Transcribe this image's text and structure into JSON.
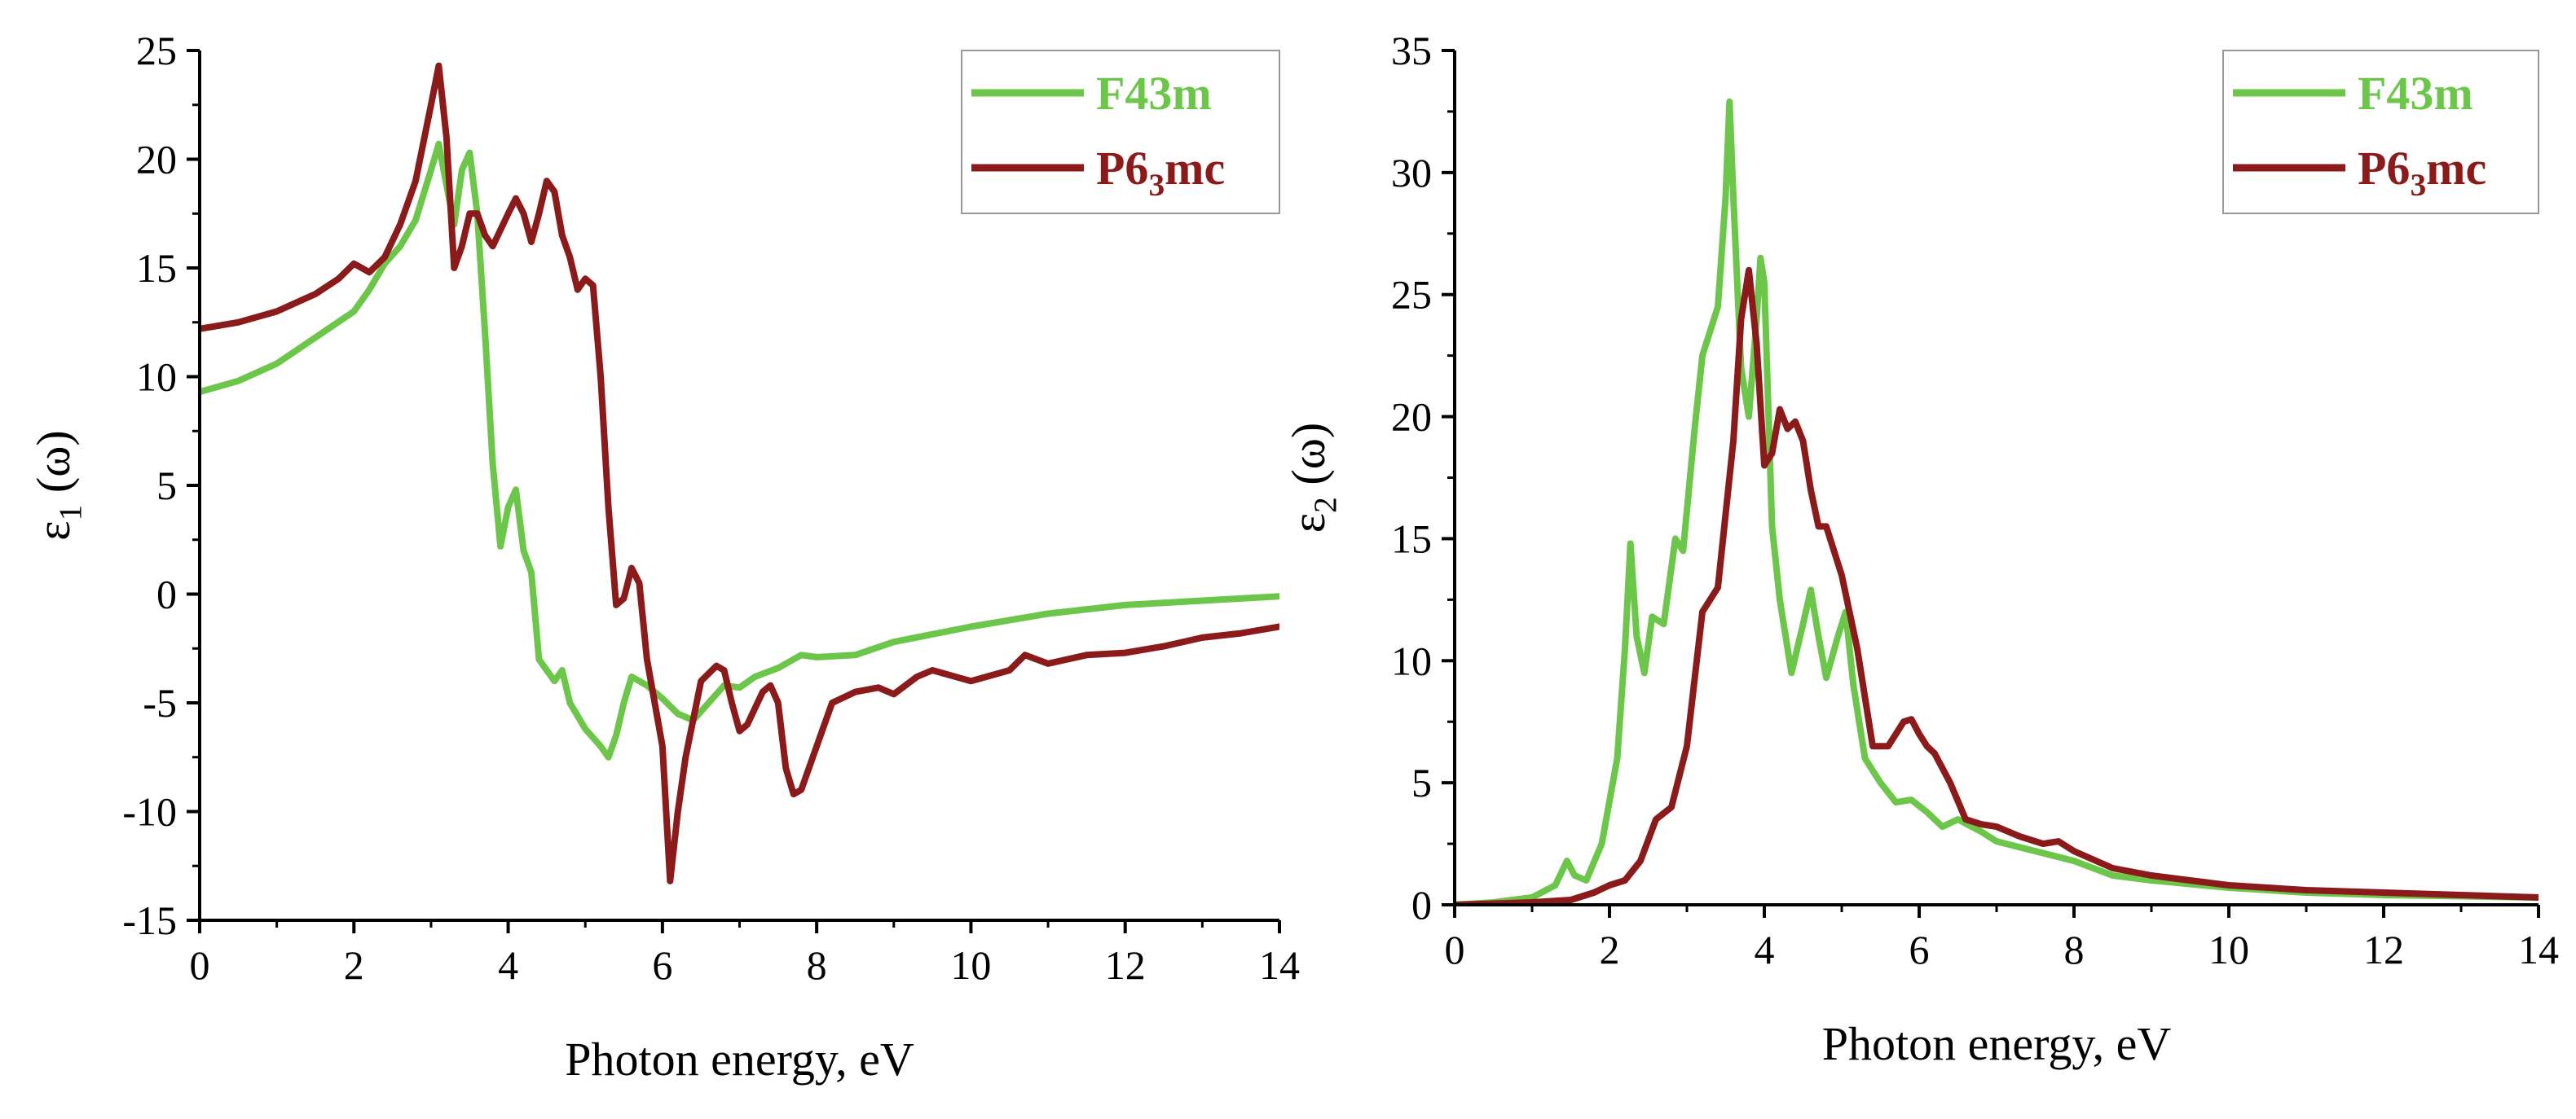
{
  "chart_data": [
    {
      "type": "line",
      "id": "eps1",
      "ylabel": "ε1 (ω)",
      "ylabel_main": "ε",
      "ylabel_sub": "1",
      "ylabel_rest": " (ω)",
      "xlabel": "Photon energy, eV",
      "xlim": [
        0,
        14
      ],
      "ylim": [
        -15,
        25
      ],
      "xticks": [
        0,
        2,
        4,
        6,
        8,
        10,
        12,
        14
      ],
      "yticks": [
        -15,
        -10,
        -5,
        0,
        5,
        10,
        15,
        20,
        25
      ],
      "xtick_labels": [
        "0",
        "2",
        "4",
        "6",
        "8",
        "10",
        "12",
        "14"
      ],
      "ytick_labels": [
        "-15",
        "-10",
        "-5",
        "0",
        "5",
        "10",
        "15",
        "20",
        "25"
      ],
      "legend": "top-right",
      "series": [
        {
          "name": "F43m",
          "label_main": "F43m",
          "label_sub": "",
          "label_rest": "",
          "color": "#6cc64a",
          "x": [
            0,
            0.5,
            1.0,
            1.5,
            2.0,
            2.2,
            2.4,
            2.6,
            2.8,
            3.0,
            3.1,
            3.2,
            3.3,
            3.4,
            3.5,
            3.6,
            3.7,
            3.8,
            3.9,
            4.0,
            4.1,
            4.2,
            4.3,
            4.4,
            4.5,
            4.6,
            4.7,
            4.8,
            5.0,
            5.2,
            5.3,
            5.4,
            5.5,
            5.6,
            5.8,
            6.0,
            6.2,
            6.4,
            6.6,
            6.8,
            7.0,
            7.2,
            7.5,
            7.8,
            8.0,
            8.5,
            9.0,
            10.0,
            11.0,
            12.0,
            13.0,
            14.0
          ],
          "values": [
            9.3,
            9.8,
            10.6,
            11.8,
            13.0,
            14.0,
            15.2,
            16.0,
            17.2,
            19.5,
            20.7,
            18.8,
            17.0,
            19.5,
            20.3,
            17.5,
            12.0,
            6.0,
            2.2,
            4.0,
            4.8,
            2.0,
            1.0,
            -3.0,
            -3.5,
            -4.0,
            -3.5,
            -5.0,
            -6.2,
            -7.0,
            -7.5,
            -6.5,
            -5.0,
            -3.8,
            -4.2,
            -4.8,
            -5.5,
            -5.8,
            -5.0,
            -4.2,
            -4.3,
            -3.8,
            -3.4,
            -2.8,
            -2.9,
            -2.8,
            -2.2,
            -1.5,
            -0.9,
            -0.5,
            -0.3,
            -0.1
          ]
        },
        {
          "name": "P63mc",
          "label_main": "P6",
          "label_sub": "3",
          "label_rest": "mc",
          "color": "#8b1a1a",
          "x": [
            0,
            0.5,
            1.0,
            1.5,
            1.8,
            2.0,
            2.1,
            2.2,
            2.4,
            2.6,
            2.8,
            3.0,
            3.1,
            3.2,
            3.3,
            3.4,
            3.5,
            3.6,
            3.7,
            3.8,
            4.0,
            4.1,
            4.2,
            4.3,
            4.4,
            4.5,
            4.6,
            4.7,
            4.8,
            4.9,
            5.0,
            5.1,
            5.2,
            5.3,
            5.4,
            5.5,
            5.6,
            5.7,
            5.8,
            5.9,
            6.0,
            6.1,
            6.2,
            6.3,
            6.5,
            6.7,
            6.8,
            6.9,
            7.0,
            7.1,
            7.3,
            7.4,
            7.5,
            7.6,
            7.7,
            7.8,
            8.0,
            8.2,
            8.5,
            8.8,
            9.0,
            9.3,
            9.5,
            10.0,
            10.5,
            10.7,
            11.0,
            11.5,
            12.0,
            12.5,
            13.0,
            13.5,
            14.0
          ],
          "values": [
            12.2,
            12.5,
            13.0,
            13.8,
            14.5,
            15.2,
            15.0,
            14.8,
            15.5,
            17.0,
            19.0,
            22.5,
            24.3,
            21.0,
            15.0,
            16.0,
            17.5,
            17.5,
            16.5,
            16.0,
            17.5,
            18.2,
            17.5,
            16.2,
            17.5,
            19.0,
            18.5,
            16.5,
            15.5,
            14.0,
            14.5,
            14.2,
            10.0,
            4.0,
            -0.5,
            -0.2,
            1.2,
            0.5,
            -3.0,
            -5.0,
            -7.0,
            -13.2,
            -10.0,
            -7.5,
            -4.0,
            -3.3,
            -3.5,
            -5.0,
            -6.3,
            -6.0,
            -4.5,
            -4.2,
            -5.0,
            -8.0,
            -9.2,
            -9.0,
            -7.0,
            -5.0,
            -4.5,
            -4.3,
            -4.6,
            -3.8,
            -3.5,
            -4.0,
            -3.5,
            -2.8,
            -3.2,
            -2.8,
            -2.7,
            -2.4,
            -2.0,
            -1.8,
            -1.5
          ]
        }
      ]
    },
    {
      "type": "line",
      "id": "eps2",
      "ylabel": "ε2 (ω)",
      "ylabel_main": "ε",
      "ylabel_sub": "2",
      "ylabel_rest": " (ω)",
      "xlabel": "Photon energy, eV",
      "xlim": [
        0,
        14
      ],
      "ylim": [
        0,
        35
      ],
      "xticks": [
        0,
        2,
        4,
        6,
        8,
        10,
        12,
        14
      ],
      "yticks": [
        0,
        5,
        10,
        15,
        20,
        25,
        30,
        35
      ],
      "xtick_labels": [
        "0",
        "2",
        "4",
        "6",
        "8",
        "10",
        "12",
        "14"
      ],
      "ytick_labels": [
        "0",
        "5",
        "10",
        "15",
        "20",
        "25",
        "30",
        "35"
      ],
      "legend": "top-right",
      "series": [
        {
          "name": "F43m",
          "label_main": "F43m",
          "label_sub": "",
          "label_rest": "",
          "color": "#6cc64a",
          "x": [
            0,
            0.5,
            1.0,
            1.3,
            1.45,
            1.55,
            1.7,
            1.9,
            2.1,
            2.2,
            2.27,
            2.35,
            2.45,
            2.55,
            2.7,
            2.85,
            2.95,
            3.1,
            3.2,
            3.3,
            3.4,
            3.5,
            3.55,
            3.6,
            3.7,
            3.8,
            3.9,
            3.95,
            4.0,
            4.1,
            4.2,
            4.35,
            4.5,
            4.6,
            4.7,
            4.8,
            4.95,
            5.05,
            5.15,
            5.3,
            5.5,
            5.7,
            5.9,
            6.1,
            6.3,
            6.5,
            6.8,
            7.0,
            7.5,
            8.0,
            8.5,
            9.0,
            10.0,
            11.0,
            12.0,
            13.0,
            14.0
          ],
          "values": [
            0.0,
            0.1,
            0.3,
            0.8,
            1.8,
            1.2,
            1.0,
            2.5,
            6.0,
            10.5,
            14.8,
            11.0,
            9.5,
            11.8,
            11.5,
            15.0,
            14.5,
            19.5,
            22.5,
            23.5,
            24.5,
            29.0,
            32.9,
            29.0,
            22.0,
            20.0,
            24.0,
            26.5,
            25.5,
            15.5,
            12.5,
            9.5,
            11.5,
            12.9,
            11.0,
            9.3,
            11.0,
            12.0,
            9.0,
            6.0,
            5.0,
            4.2,
            4.3,
            3.8,
            3.2,
            3.5,
            3.0,
            2.6,
            2.2,
            1.8,
            1.2,
            1.0,
            0.7,
            0.5,
            0.4,
            0.35,
            0.3
          ]
        },
        {
          "name": "P63mc",
          "label_main": "P6",
          "label_sub": "3",
          "label_rest": "mc",
          "color": "#8b1a1a",
          "x": [
            0,
            0.5,
            1.0,
            1.5,
            1.8,
            2.0,
            2.2,
            2.4,
            2.6,
            2.8,
            3.0,
            3.2,
            3.4,
            3.6,
            3.7,
            3.8,
            3.9,
            4.0,
            4.1,
            4.2,
            4.3,
            4.4,
            4.5,
            4.6,
            4.7,
            4.8,
            5.0,
            5.2,
            5.4,
            5.6,
            5.8,
            5.9,
            6.0,
            6.1,
            6.2,
            6.4,
            6.6,
            6.8,
            7.0,
            7.3,
            7.6,
            7.8,
            8.0,
            8.5,
            9.0,
            10.0,
            11.0,
            12.0,
            13.0,
            14.0
          ],
          "values": [
            0.0,
            0.05,
            0.1,
            0.2,
            0.5,
            0.8,
            1.0,
            1.8,
            3.5,
            4.0,
            6.5,
            12.0,
            13.0,
            19.0,
            24.0,
            26.0,
            23.0,
            18.0,
            18.5,
            20.3,
            19.5,
            19.8,
            19.0,
            17.0,
            15.5,
            15.5,
            13.5,
            10.5,
            6.5,
            6.5,
            7.5,
            7.6,
            7.0,
            6.5,
            6.2,
            5.0,
            3.5,
            3.3,
            3.2,
            2.8,
            2.5,
            2.6,
            2.2,
            1.5,
            1.2,
            0.8,
            0.6,
            0.5,
            0.4,
            0.3
          ]
        }
      ]
    }
  ]
}
